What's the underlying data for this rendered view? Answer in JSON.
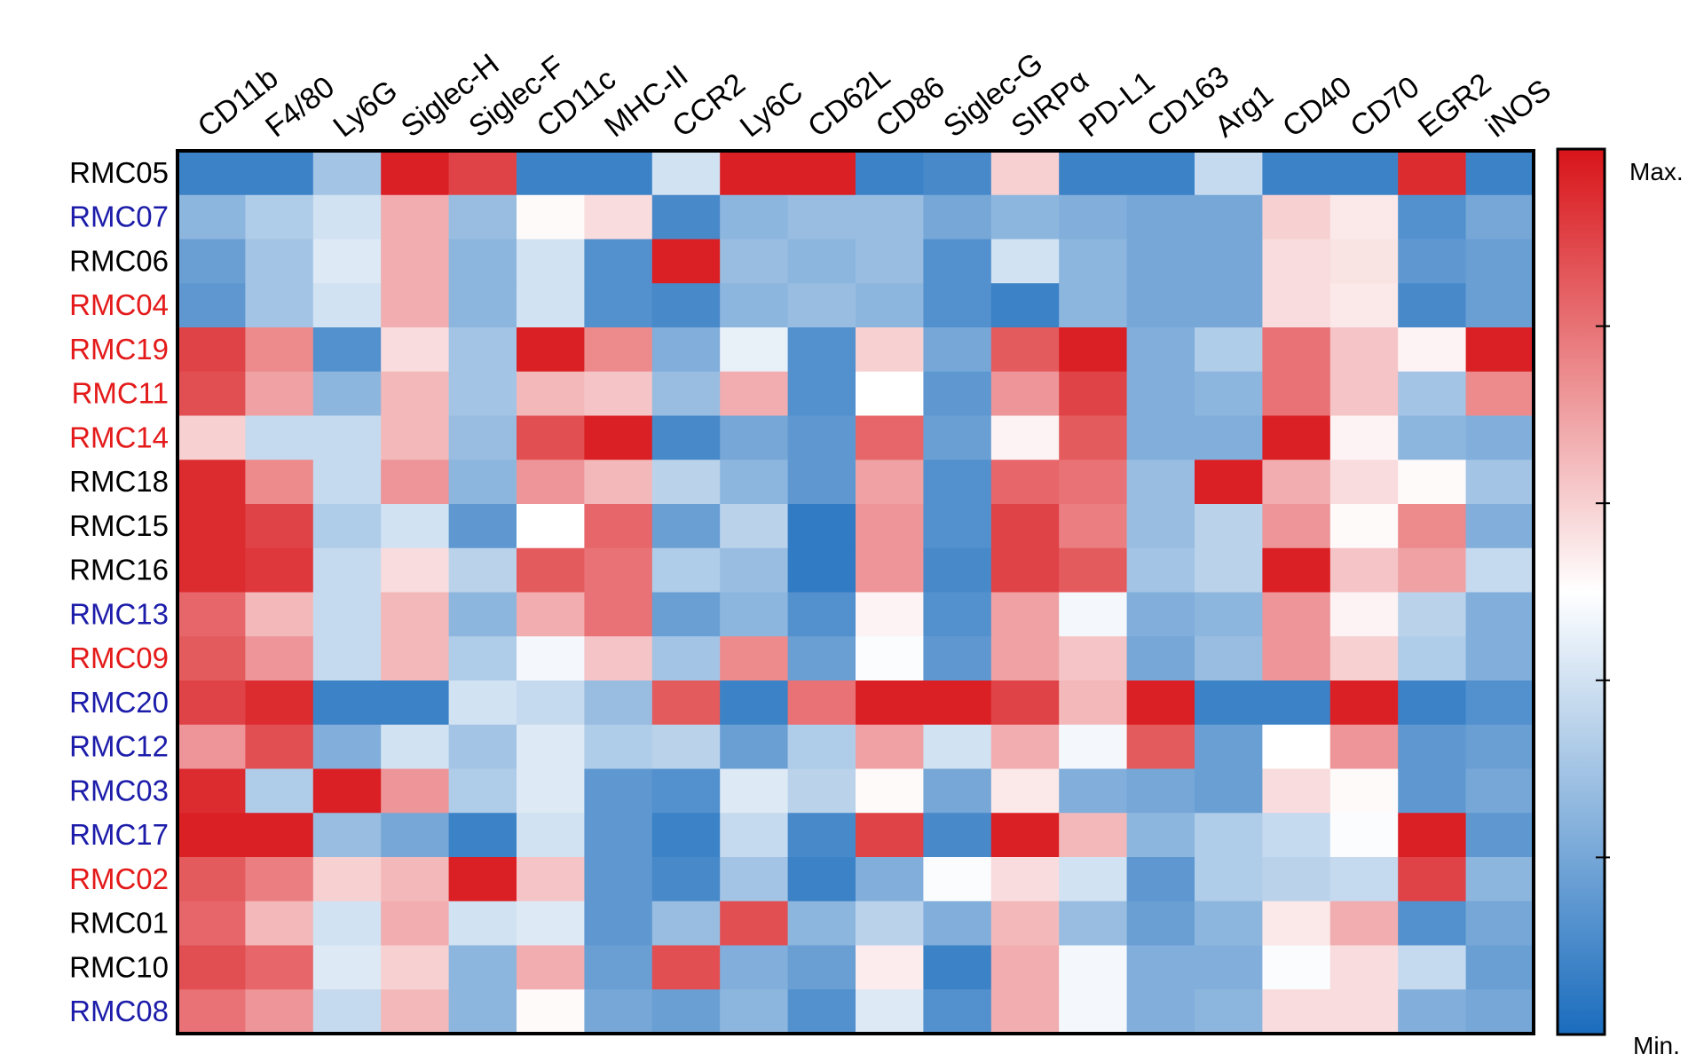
{
  "chart_data": {
    "type": "heatmap",
    "title": "",
    "xlabel": "",
    "ylabel": "",
    "columns": [
      "CD11b",
      "F4/80",
      "Ly6G",
      "Siglec-H",
      "Siglec-F",
      "CD11c",
      "MHC-II",
      "CCR2",
      "Ly6C",
      "CD62L",
      "CD86",
      "Siglec-G",
      "SIRPα",
      "PD-L1",
      "CD163",
      "Arg1",
      "CD40",
      "CD70",
      "EGR2",
      "iNOS"
    ],
    "rows": [
      {
        "label": "RMC05",
        "color": "#000000",
        "values": [
          -0.85,
          -0.85,
          -0.4,
          0.95,
          0.8,
          -0.85,
          -0.85,
          -0.2,
          0.95,
          0.95,
          -0.85,
          -0.8,
          0.2,
          -0.85,
          -0.85,
          -0.25,
          -0.85,
          -0.85,
          0.9,
          -0.85
        ]
      },
      {
        "label": "RMC07",
        "color": "#1c1caa",
        "values": [
          -0.5,
          -0.35,
          -0.2,
          0.35,
          -0.45,
          0.02,
          0.15,
          -0.8,
          -0.5,
          -0.45,
          -0.45,
          -0.6,
          -0.5,
          -0.55,
          -0.6,
          -0.6,
          0.2,
          0.1,
          -0.75,
          -0.6
        ]
      },
      {
        "label": "RMC06",
        "color": "#000000",
        "values": [
          -0.65,
          -0.4,
          -0.15,
          0.35,
          -0.5,
          -0.2,
          -0.75,
          0.95,
          -0.45,
          -0.5,
          -0.45,
          -0.75,
          -0.2,
          -0.5,
          -0.6,
          -0.6,
          0.15,
          0.12,
          -0.7,
          -0.65
        ]
      },
      {
        "label": "RMC04",
        "color": "#e41a1a",
        "values": [
          -0.7,
          -0.4,
          -0.2,
          0.35,
          -0.5,
          -0.2,
          -0.75,
          -0.8,
          -0.5,
          -0.45,
          -0.5,
          -0.75,
          -0.85,
          -0.5,
          -0.6,
          -0.6,
          0.15,
          0.1,
          -0.8,
          -0.65
        ]
      },
      {
        "label": "RMC19",
        "color": "#e41a1a",
        "values": [
          0.8,
          0.5,
          -0.75,
          0.15,
          -0.4,
          0.95,
          0.5,
          -0.55,
          -0.1,
          -0.75,
          0.2,
          -0.6,
          0.7,
          0.95,
          -0.55,
          -0.35,
          0.6,
          0.25,
          0.05,
          0.95
        ]
      },
      {
        "label": "RMC11",
        "color": "#e41a1a",
        "values": [
          0.75,
          0.4,
          -0.5,
          0.3,
          -0.4,
          0.3,
          0.25,
          -0.45,
          0.35,
          -0.75,
          0.0,
          -0.7,
          0.45,
          0.8,
          -0.55,
          -0.5,
          0.6,
          0.25,
          -0.4,
          0.5
        ]
      },
      {
        "label": "RMC14",
        "color": "#e41a1a",
        "values": [
          0.2,
          -0.25,
          -0.25,
          0.3,
          -0.45,
          0.75,
          0.95,
          -0.8,
          -0.6,
          -0.7,
          0.65,
          -0.65,
          0.05,
          0.7,
          -0.55,
          -0.55,
          0.95,
          0.05,
          -0.5,
          -0.55
        ]
      },
      {
        "label": "RMC18",
        "color": "#000000",
        "values": [
          0.9,
          0.5,
          -0.25,
          0.45,
          -0.5,
          0.45,
          0.3,
          -0.3,
          -0.5,
          -0.7,
          0.4,
          -0.75,
          0.65,
          0.6,
          -0.45,
          0.95,
          0.35,
          0.15,
          0.02,
          -0.4
        ]
      },
      {
        "label": "RMC15",
        "color": "#000000",
        "values": [
          0.9,
          0.8,
          -0.35,
          -0.2,
          -0.7,
          0.0,
          0.65,
          -0.65,
          -0.3,
          -0.9,
          0.45,
          -0.75,
          0.8,
          0.55,
          -0.45,
          -0.3,
          0.45,
          0.02,
          0.5,
          -0.55
        ]
      },
      {
        "label": "RMC16",
        "color": "#000000",
        "values": [
          0.9,
          0.85,
          -0.25,
          0.15,
          -0.3,
          0.7,
          0.6,
          -0.35,
          -0.45,
          -0.9,
          0.45,
          -0.8,
          0.8,
          0.7,
          -0.4,
          -0.3,
          0.95,
          0.25,
          0.4,
          -0.25
        ]
      },
      {
        "label": "RMC13",
        "color": "#1c1caa",
        "values": [
          0.65,
          0.3,
          -0.25,
          0.3,
          -0.5,
          0.35,
          0.6,
          -0.65,
          -0.5,
          -0.75,
          0.05,
          -0.75,
          0.4,
          -0.05,
          -0.55,
          -0.5,
          0.45,
          0.05,
          -0.3,
          -0.55
        ]
      },
      {
        "label": "RMC09",
        "color": "#e41a1a",
        "values": [
          0.7,
          0.45,
          -0.25,
          0.3,
          -0.35,
          -0.05,
          0.25,
          -0.4,
          0.5,
          -0.65,
          -0.02,
          -0.7,
          0.4,
          0.25,
          -0.6,
          -0.45,
          0.45,
          0.2,
          -0.35,
          -0.55
        ]
      },
      {
        "label": "RMC20",
        "color": "#1c1caa",
        "values": [
          0.8,
          0.9,
          -0.85,
          -0.85,
          -0.2,
          -0.25,
          -0.45,
          0.7,
          -0.85,
          0.6,
          0.95,
          0.95,
          0.8,
          0.3,
          0.95,
          -0.85,
          -0.85,
          0.95,
          -0.85,
          -0.75
        ]
      },
      {
        "label": "RMC12",
        "color": "#1c1caa",
        "values": [
          0.45,
          0.75,
          -0.55,
          -0.2,
          -0.4,
          -0.15,
          -0.35,
          -0.3,
          -0.65,
          -0.35,
          0.4,
          -0.2,
          0.35,
          -0.05,
          0.7,
          -0.65,
          0.0,
          0.45,
          -0.7,
          -0.65
        ]
      },
      {
        "label": "RMC03",
        "color": "#1c1caa",
        "values": [
          0.9,
          -0.35,
          0.95,
          0.45,
          -0.35,
          -0.15,
          -0.7,
          -0.75,
          -0.15,
          -0.3,
          0.02,
          -0.6,
          0.1,
          -0.55,
          -0.6,
          -0.65,
          0.15,
          0.02,
          -0.7,
          -0.6
        ]
      },
      {
        "label": "RMC17",
        "color": "#1c1caa",
        "values": [
          0.95,
          0.95,
          -0.45,
          -0.6,
          -0.85,
          -0.2,
          -0.7,
          -0.85,
          -0.25,
          -0.8,
          0.8,
          -0.8,
          0.95,
          0.3,
          -0.5,
          -0.35,
          -0.25,
          -0.02,
          0.95,
          -0.7
        ]
      },
      {
        "label": "RMC02",
        "color": "#e41a1a",
        "values": [
          0.7,
          0.55,
          0.2,
          0.3,
          0.95,
          0.25,
          -0.7,
          -0.8,
          -0.4,
          -0.85,
          -0.55,
          -0.02,
          0.15,
          -0.2,
          -0.7,
          -0.35,
          -0.3,
          -0.25,
          0.8,
          -0.5
        ]
      },
      {
        "label": "RMC01",
        "color": "#000000",
        "values": [
          0.65,
          0.3,
          -0.2,
          0.35,
          -0.2,
          -0.15,
          -0.7,
          -0.45,
          0.75,
          -0.5,
          -0.3,
          -0.55,
          0.3,
          -0.45,
          -0.65,
          -0.5,
          0.1,
          0.35,
          -0.75,
          -0.6
        ]
      },
      {
        "label": "RMC10",
        "color": "#000000",
        "values": [
          0.75,
          0.65,
          -0.15,
          0.2,
          -0.5,
          0.35,
          -0.65,
          0.75,
          -0.55,
          -0.65,
          0.08,
          -0.85,
          0.35,
          -0.05,
          -0.55,
          -0.55,
          -0.02,
          0.15,
          -0.25,
          -0.65
        ]
      },
      {
        "label": "RMC08",
        "color": "#1c1caa",
        "values": [
          0.6,
          0.45,
          -0.25,
          0.3,
          -0.5,
          0.02,
          -0.6,
          -0.65,
          -0.5,
          -0.75,
          -0.15,
          -0.75,
          0.35,
          -0.05,
          -0.55,
          -0.5,
          0.15,
          0.15,
          -0.55,
          -0.6
        ]
      }
    ],
    "value_range": [
      -1,
      1
    ],
    "color_scale": {
      "min_color": "#1a6cbd",
      "mid_color": "#ffffff",
      "max_color": "#d81419"
    },
    "legend": {
      "placement": "right",
      "max_label": "Max.",
      "min_label": "Min."
    }
  }
}
